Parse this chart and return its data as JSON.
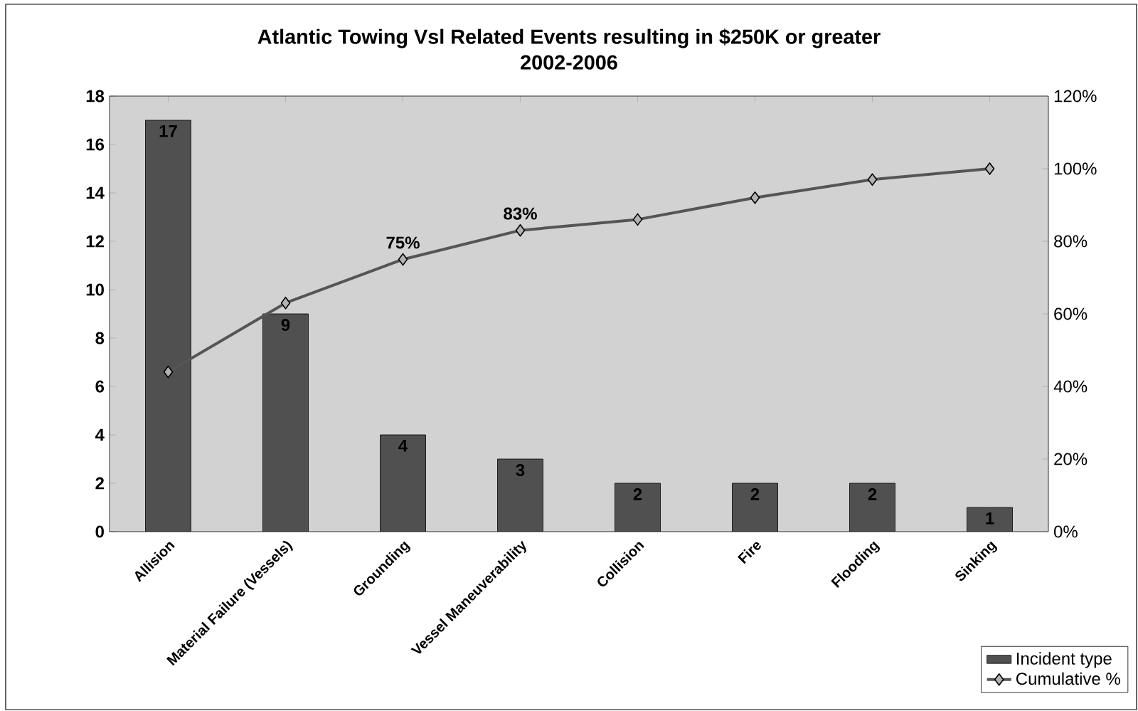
{
  "chart_data": {
    "type": "bar",
    "title": "Atlantic Towing Vsl Related Events resulting in $250K or greater",
    "subtitle": "2002-2006",
    "categories": [
      "Allision",
      "Material Failure (Vessels)",
      "Grounding",
      "Vessel Maneuverability",
      "Collision",
      "Fire",
      "Flooding",
      "Sinking"
    ],
    "series": [
      {
        "name": "Incident type",
        "color": "#505050",
        "values": [
          17,
          9,
          4,
          3,
          2,
          2,
          2,
          1
        ]
      },
      {
        "name": "Cumulative %",
        "type": "line",
        "axis": "y2",
        "color": "#555555",
        "marker": "diamond",
        "values": [
          44,
          63,
          75,
          83,
          86,
          92,
          97,
          100
        ],
        "value_labels": [
          null,
          null,
          "75%",
          "83%",
          null,
          null,
          null,
          null
        ]
      }
    ],
    "data_labels": true,
    "ylim": [
      0,
      18
    ],
    "yticks": [
      0,
      2,
      4,
      6,
      8,
      10,
      12,
      14,
      16,
      18
    ],
    "y2lim": [
      0,
      120
    ],
    "y2ticks": [
      {
        "value": 0,
        "label": "0%"
      },
      {
        "value": 20,
        "label": "20%"
      },
      {
        "value": 40,
        "label": "40%"
      },
      {
        "value": 60,
        "label": "60%"
      },
      {
        "value": 80,
        "label": "80%"
      },
      {
        "value": 100,
        "label": "100%"
      },
      {
        "value": 120,
        "label": "120%"
      }
    ],
    "legend": "bottom right",
    "grid": false
  }
}
